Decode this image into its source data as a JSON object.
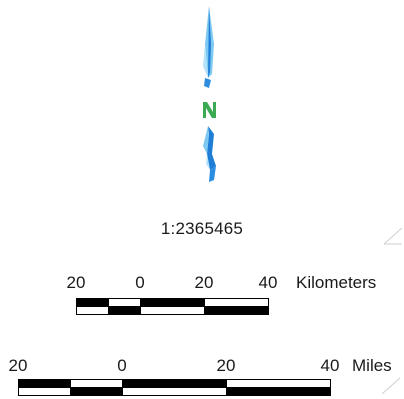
{
  "scale_ratio": "1:2365465",
  "north_arrow": {
    "icon": "north-arrow-icon",
    "letter": "N",
    "colors": {
      "arrow_dark": "#1f7fd6",
      "arrow_light": "#7ec9f2",
      "letter": "#3aaa55"
    }
  },
  "scalebar_km": {
    "unit": "Kilometers",
    "labels": [
      "20",
      "0",
      "20",
      "40"
    ]
  },
  "scalebar_miles": {
    "unit": "Miles",
    "labels": [
      "20",
      "0",
      "20",
      "40"
    ]
  },
  "colors": {
    "bar_fill": "#000000",
    "bar_empty": "#ffffff",
    "text": "#1a1a1a"
  }
}
